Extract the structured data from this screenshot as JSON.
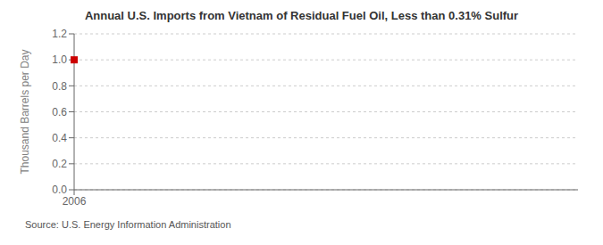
{
  "chart_data": {
    "type": "scatter",
    "title": "Annual U.S. Imports from Vietnam of Residual Fuel Oil, Less than 0.31% Sulfur",
    "ylabel": "Thousand Barrels per Day",
    "annotations": [
      "Source: U.S. Energy Information Administration"
    ],
    "x": [
      2006
    ],
    "values": [
      1.0
    ],
    "color": "#cc0000",
    "marker": "square",
    "xlim": [
      2006,
      2007
    ],
    "ylim": [
      0.0,
      1.2
    ],
    "xticks": [
      2006
    ],
    "yticks": [
      {
        "value": 0.0,
        "label": "0.0"
      },
      0.2,
      0.4,
      0.6,
      0.8,
      {
        "value": 1.0,
        "label": "1.0"
      },
      1.2
    ],
    "grid": true
  }
}
